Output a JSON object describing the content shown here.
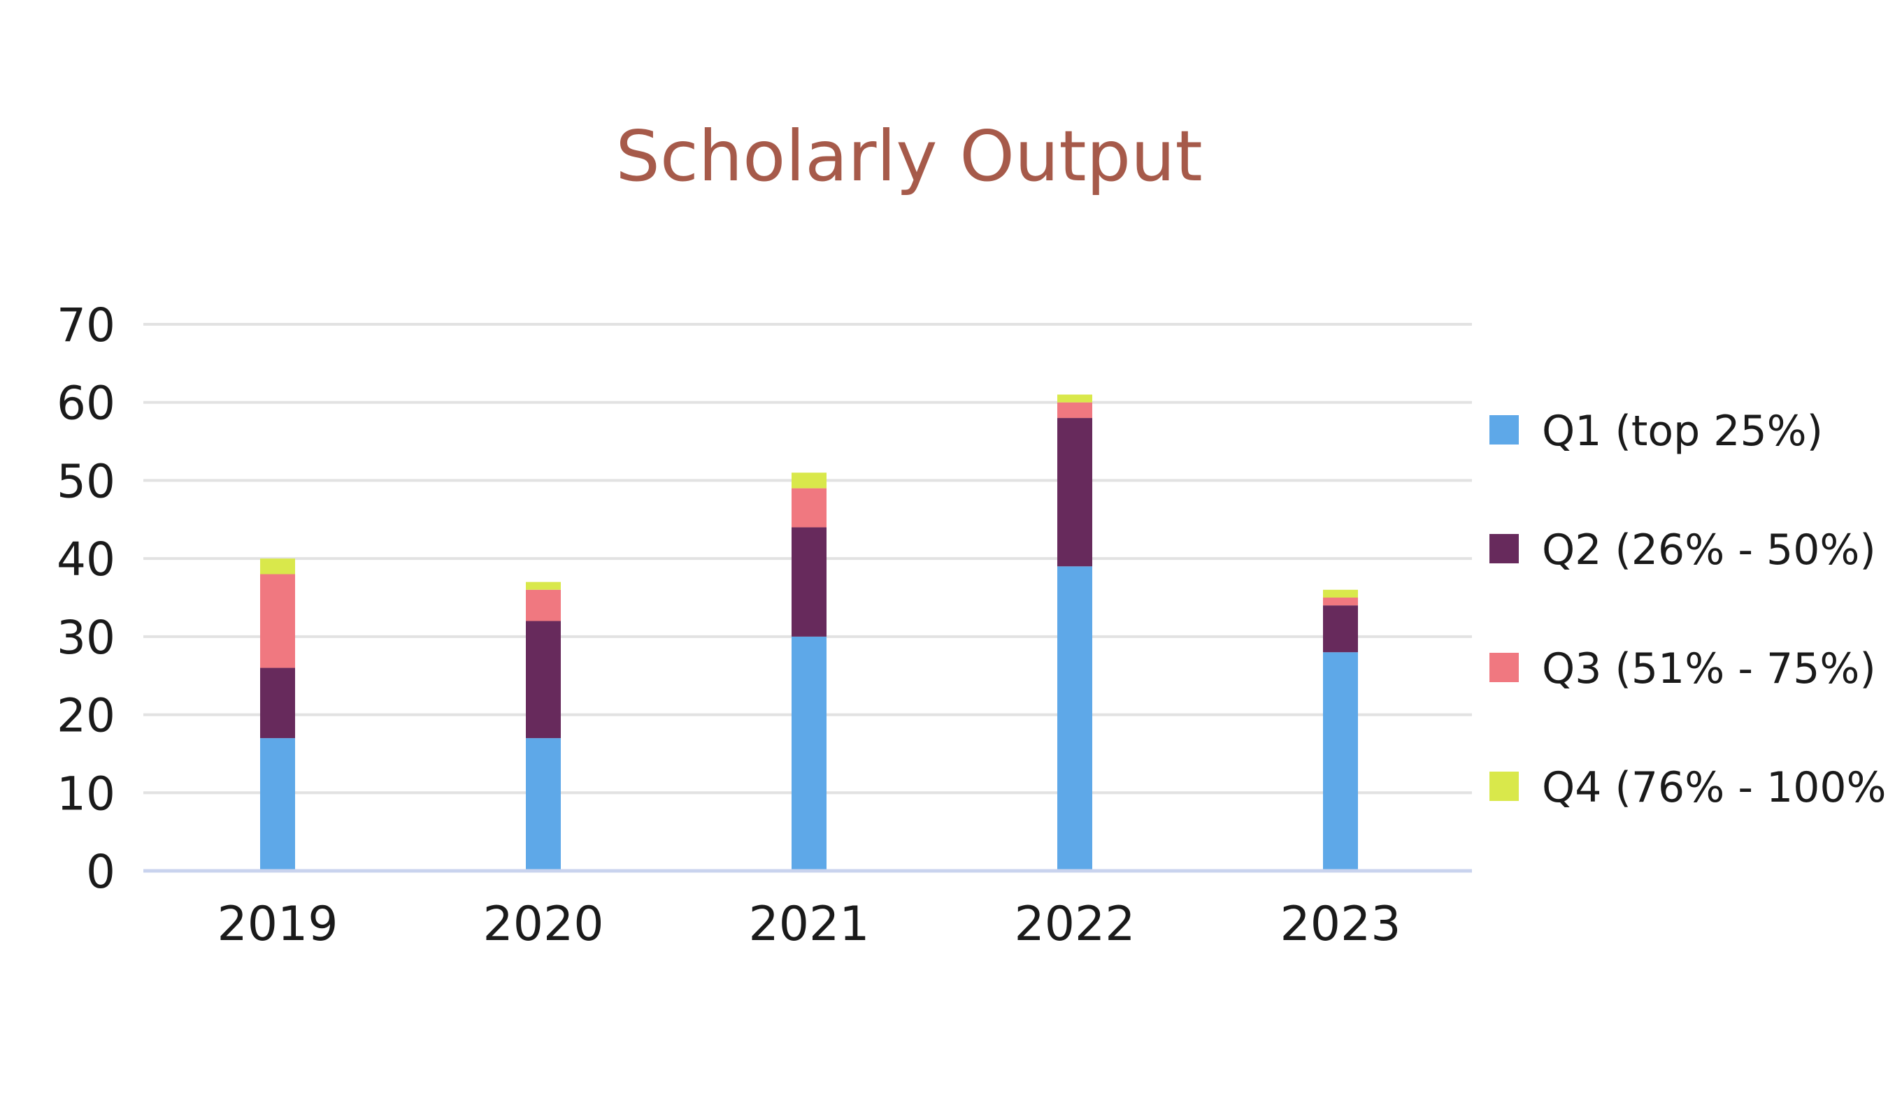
{
  "chart_data": {
    "type": "bar",
    "stacked": true,
    "title": "Scholarly Output",
    "xlabel": "",
    "ylabel": "",
    "ylim": [
      0,
      70
    ],
    "yticks": [
      0,
      10,
      20,
      30,
      40,
      50,
      60,
      70
    ],
    "grid": true,
    "legend_position": "right",
    "categories": [
      "2019",
      "2020",
      "2021",
      "2022",
      "2023"
    ],
    "series": [
      {
        "name": "Q1 (top 25%)",
        "color": "#5ea8e8",
        "values": [
          17,
          17,
          30,
          39,
          28
        ]
      },
      {
        "name": "Q2 (26% - 50%)",
        "color": "#672a5c",
        "values": [
          9,
          15,
          14,
          19,
          6
        ]
      },
      {
        "name": "Q3 (51% - 75%)",
        "color": "#f07880",
        "values": [
          12,
          4,
          5,
          2,
          1
        ]
      },
      {
        "name": "Q4 (76% - 100%)",
        "color": "#d9e84b",
        "values": [
          2,
          1,
          2,
          1,
          1
        ]
      }
    ],
    "colors": {
      "title": "#a65a4a",
      "grid": "#e2e2e2",
      "axis": "#c9d3ee",
      "text": "#1a1a1a"
    }
  }
}
